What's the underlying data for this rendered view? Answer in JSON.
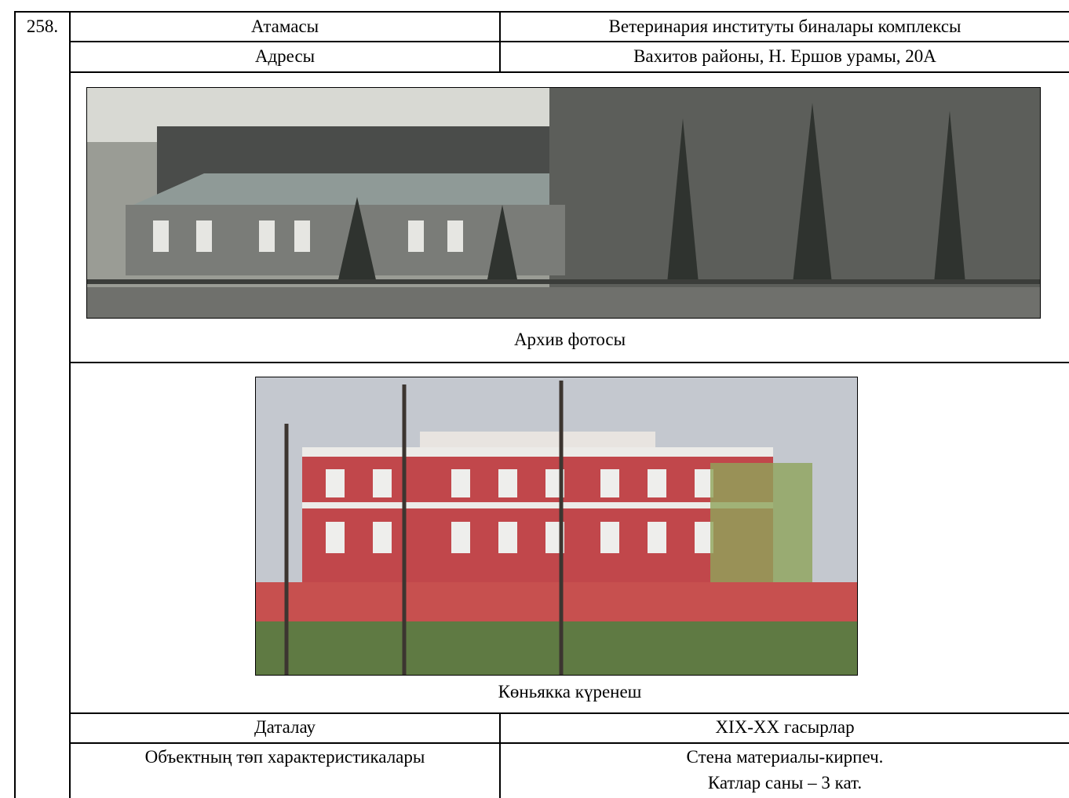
{
  "number": "258.",
  "rows": [
    [
      "Атамасы",
      "Ветеринария институты биналары комплексы"
    ],
    [
      "Адресы",
      "Вахитов районы, Н. Ершов урамы, 20А"
    ]
  ],
  "archive_caption": "Архив фотосы",
  "current_caption": "Көньякка күренеш",
  "dating": [
    "Даталау",
    "XIX-XX гасырлар"
  ],
  "characteristics": {
    "label": "Объектның төп характеристикалары",
    "lines": [
      "Стена материалы-кирпеч.",
      "Катлар саны – 3 кат."
    ]
  }
}
